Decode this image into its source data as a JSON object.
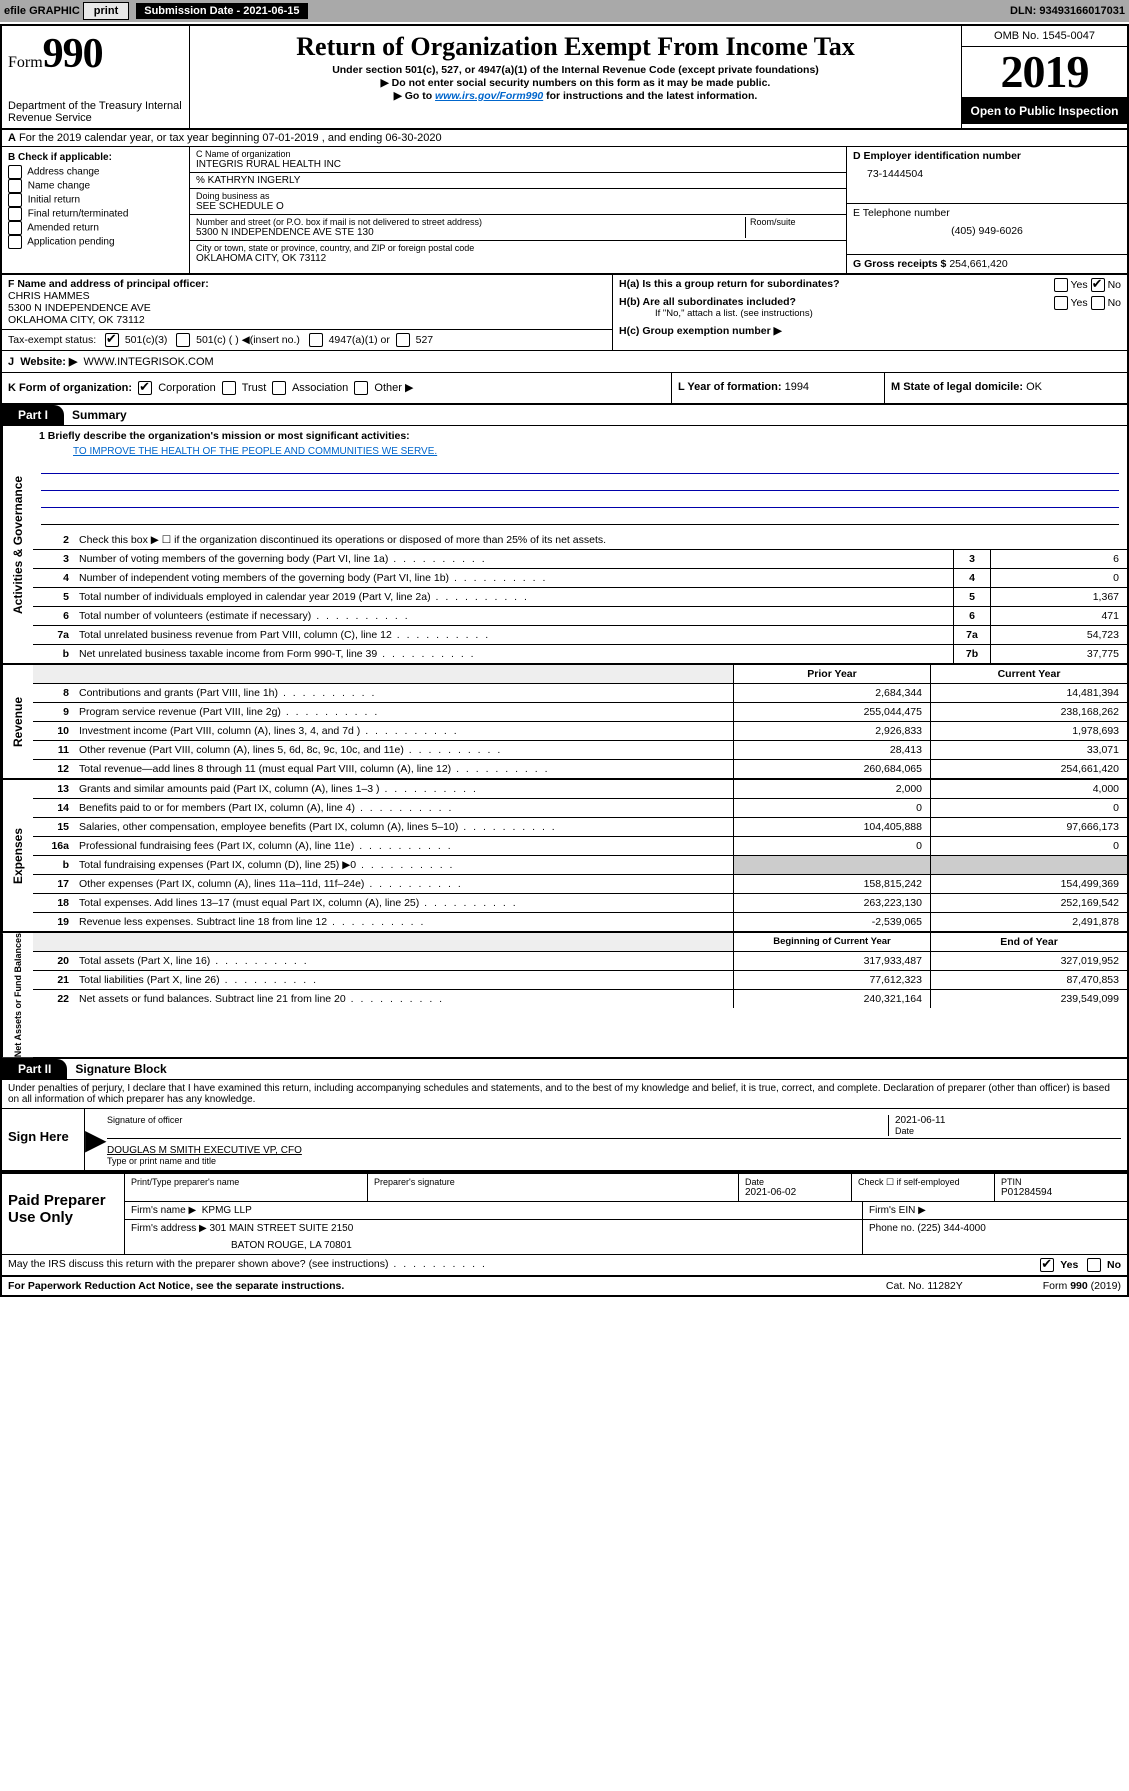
{
  "hdr": {
    "efile": "efile GRAPHIC",
    "print": "print",
    "sub_lbl": "Submission Date - 2021-06-15",
    "dln": "DLN: 93493166017031"
  },
  "top": {
    "form_pre": "Form",
    "form_num": "990",
    "dept": "Department of the Treasury Internal Revenue Service",
    "title": "Return of Organization Exempt From Income Tax",
    "sub1": "Under section 501(c), 527, or 4947(a)(1) of the Internal Revenue Code (except private foundations)",
    "sub2": "Do not enter social security numbers on this form as it may be made public.",
    "sub3_pre": "Go to ",
    "sub3_link": "www.irs.gov/Form990",
    "sub3_post": " for instructions and the latest information.",
    "omb": "OMB No. 1545-0047",
    "year": "2019",
    "open": "Open to Public Inspection"
  },
  "a": {
    "text": "For the 2019 calendar year, or tax year beginning 07-01-2019   , and ending 06-30-2020"
  },
  "b": {
    "lbl": "B Check if applicable:",
    "opts": [
      "Address change",
      "Name change",
      "Initial return",
      "Final return/terminated",
      "Amended return",
      "Application pending"
    ]
  },
  "c": {
    "name_lbl": "C Name of organization",
    "name": "INTEGRIS RURAL HEALTH INC",
    "care": "% KATHRYN INGERLY",
    "dba_lbl": "Doing business as",
    "dba": "SEE SCHEDULE O",
    "addr_lbl": "Number and street (or P.O. box if mail is not delivered to street address)",
    "addr": "5300 N INDEPENDENCE AVE STE 130",
    "room_lbl": "Room/suite",
    "city_lbl": "City or town, state or province, country, and ZIP or foreign postal code",
    "city": "OKLAHOMA CITY, OK  73112"
  },
  "d": {
    "ein_lbl": "D Employer identification number",
    "ein": "73-1444504",
    "tel_lbl": "E Telephone number",
    "tel": "(405) 949-6026",
    "gross_lbl": "G Gross receipts $",
    "gross": "254,661,420"
  },
  "f": {
    "lbl": "F  Name and address of principal officer:",
    "name": "CHRIS HAMMES",
    "addr1": "5300 N INDEPENDENCE AVE",
    "addr2": "OKLAHOMA CITY, OK  73112",
    "tax_lbl": "Tax-exempt status:",
    "tax_501c3": "501(c)(3)",
    "tax_501c": "501(c) (  ) ◀(insert no.)",
    "tax_4947": "4947(a)(1) or",
    "tax_527": "527",
    "site_lbl": "Website: ▶",
    "site": "WWW.INTEGRISOK.COM"
  },
  "h": {
    "a_lbl": "H(a)  Is this a group return for subordinates?",
    "b_lbl": "H(b)  Are all subordinates included?",
    "b_note": "If \"No,\" attach a list. (see instructions)",
    "c_lbl": "H(c)  Group exemption number ▶",
    "yes": "Yes",
    "no": "No"
  },
  "k": {
    "lbl": "K Form of organization:",
    "corp": "Corporation",
    "trust": "Trust",
    "assoc": "Association",
    "other": "Other ▶",
    "l_lbl": "L Year of formation:",
    "l_val": "1994",
    "m_lbl": "M State of legal domicile:",
    "m_val": "OK"
  },
  "part1": {
    "tab": "Part I",
    "title": "Summary"
  },
  "mission": {
    "lbl": "1  Briefly describe the organization's mission or most significant activities:",
    "txt": "TO IMPROVE THE HEALTH OF THE PEOPLE AND COMMUNITIES WE SERVE."
  },
  "lines_top": [
    {
      "n": "2",
      "d": "Check this box ▶ ☐  if the organization discontinued its operations or disposed of more than 25% of its net assets."
    },
    {
      "n": "3",
      "d": "Number of voting members of the governing body (Part VI, line 1a)",
      "r": "3",
      "v": "6"
    },
    {
      "n": "4",
      "d": "Number of independent voting members of the governing body (Part VI, line 1b)",
      "r": "4",
      "v": "0"
    },
    {
      "n": "5",
      "d": "Total number of individuals employed in calendar year 2019 (Part V, line 2a)",
      "r": "5",
      "v": "1,367"
    },
    {
      "n": "6",
      "d": "Total number of volunteers (estimate if necessary)",
      "r": "6",
      "v": "471"
    },
    {
      "n": "7a",
      "d": "Total unrelated business revenue from Part VIII, column (C), line 12",
      "r": "7a",
      "v": "54,723"
    },
    {
      "n": "b",
      "d": "Net unrelated business taxable income from Form 990-T, line 39",
      "r": "7b",
      "v": "37,775"
    }
  ],
  "two_col_hdr": {
    "a": "Prior Year",
    "b": "Current Year"
  },
  "revenue": [
    {
      "n": "8",
      "d": "Contributions and grants (Part VIII, line 1h)",
      "a": "2,684,344",
      "b": "14,481,394"
    },
    {
      "n": "9",
      "d": "Program service revenue (Part VIII, line 2g)",
      "a": "255,044,475",
      "b": "238,168,262"
    },
    {
      "n": "10",
      "d": "Investment income (Part VIII, column (A), lines 3, 4, and 7d )",
      "a": "2,926,833",
      "b": "1,978,693"
    },
    {
      "n": "11",
      "d": "Other revenue (Part VIII, column (A), lines 5, 6d, 8c, 9c, 10c, and 11e)",
      "a": "28,413",
      "b": "33,071"
    },
    {
      "n": "12",
      "d": "Total revenue—add lines 8 through 11 (must equal Part VIII, column (A), line 12)",
      "a": "260,684,065",
      "b": "254,661,420"
    }
  ],
  "expenses": [
    {
      "n": "13",
      "d": "Grants and similar amounts paid (Part IX, column (A), lines 1–3 )",
      "a": "2,000",
      "b": "4,000"
    },
    {
      "n": "14",
      "d": "Benefits paid to or for members (Part IX, column (A), line 4)",
      "a": "0",
      "b": "0"
    },
    {
      "n": "15",
      "d": "Salaries, other compensation, employee benefits (Part IX, column (A), lines 5–10)",
      "a": "104,405,888",
      "b": "97,666,173"
    },
    {
      "n": "16a",
      "d": "Professional fundraising fees (Part IX, column (A), line 11e)",
      "a": "0",
      "b": "0"
    },
    {
      "n": "b",
      "d": "Total fundraising expenses (Part IX, column (D), line 25) ▶0",
      "a": "",
      "b": ""
    },
    {
      "n": "17",
      "d": "Other expenses (Part IX, column (A), lines 11a–11d, 11f–24e)",
      "a": "158,815,242",
      "b": "154,499,369"
    },
    {
      "n": "18",
      "d": "Total expenses. Add lines 13–17 (must equal Part IX, column (A), line 25)",
      "a": "263,223,130",
      "b": "252,169,542"
    },
    {
      "n": "19",
      "d": "Revenue less expenses. Subtract line 18 from line 12",
      "a": "-2,539,065",
      "b": "2,491,878"
    }
  ],
  "net_hdr": {
    "a": "Beginning of Current Year",
    "b": "End of Year"
  },
  "net": [
    {
      "n": "20",
      "d": "Total assets (Part X, line 16)",
      "a": "317,933,487",
      "b": "327,019,952"
    },
    {
      "n": "21",
      "d": "Total liabilities (Part X, line 26)",
      "a": "77,612,323",
      "b": "87,470,853"
    },
    {
      "n": "22",
      "d": "Net assets or fund balances. Subtract line 21 from line 20",
      "a": "240,321,164",
      "b": "239,549,099"
    }
  ],
  "vlabels": {
    "gov": "Activities & Governance",
    "rev": "Revenue",
    "exp": "Expenses",
    "net": "Net Assets or Fund Balances"
  },
  "part2": {
    "tab": "Part II",
    "title": "Signature Block"
  },
  "perjury": "Under penalties of perjury, I declare that I have examined this return, including accompanying schedules and statements, and to the best of my knowledge and belief, it is true, correct, and complete. Declaration of preparer (other than officer) is based on all information of which preparer has any knowledge.",
  "sign": {
    "here": "Sign Here",
    "sig_lbl": "Signature of officer",
    "date": "2021-06-11",
    "date_lbl": "Date",
    "name": "DOUGLAS M SMITH  EXECUTIVE VP, CFO",
    "name_lbl": "Type or print name and title"
  },
  "prep": {
    "title": "Paid Preparer Use Only",
    "h_name": "Print/Type preparer's name",
    "h_sig": "Preparer's signature",
    "h_date": "Date",
    "date": "2021-06-02",
    "check_lbl": "Check ☐ if self-employed",
    "ptin_lbl": "PTIN",
    "ptin": "P01284594",
    "firm_lbl": "Firm's name  ▶",
    "firm": "KPMG LLP",
    "ein_lbl": "Firm's EIN ▶",
    "addr_lbl": "Firm's address ▶",
    "addr1": "301 MAIN STREET SUITE 2150",
    "addr2": "BATON ROUGE, LA  70801",
    "phone_lbl": "Phone no.",
    "phone": "(225) 344-4000"
  },
  "discuss": {
    "q": "May the IRS discuss this return with the preparer shown above? (see instructions)",
    "yes": "Yes",
    "no": "No"
  },
  "footer": {
    "l": "For Paperwork Reduction Act Notice, see the separate instructions.",
    "m": "Cat. No. 11282Y",
    "r": "Form 990 (2019)"
  }
}
